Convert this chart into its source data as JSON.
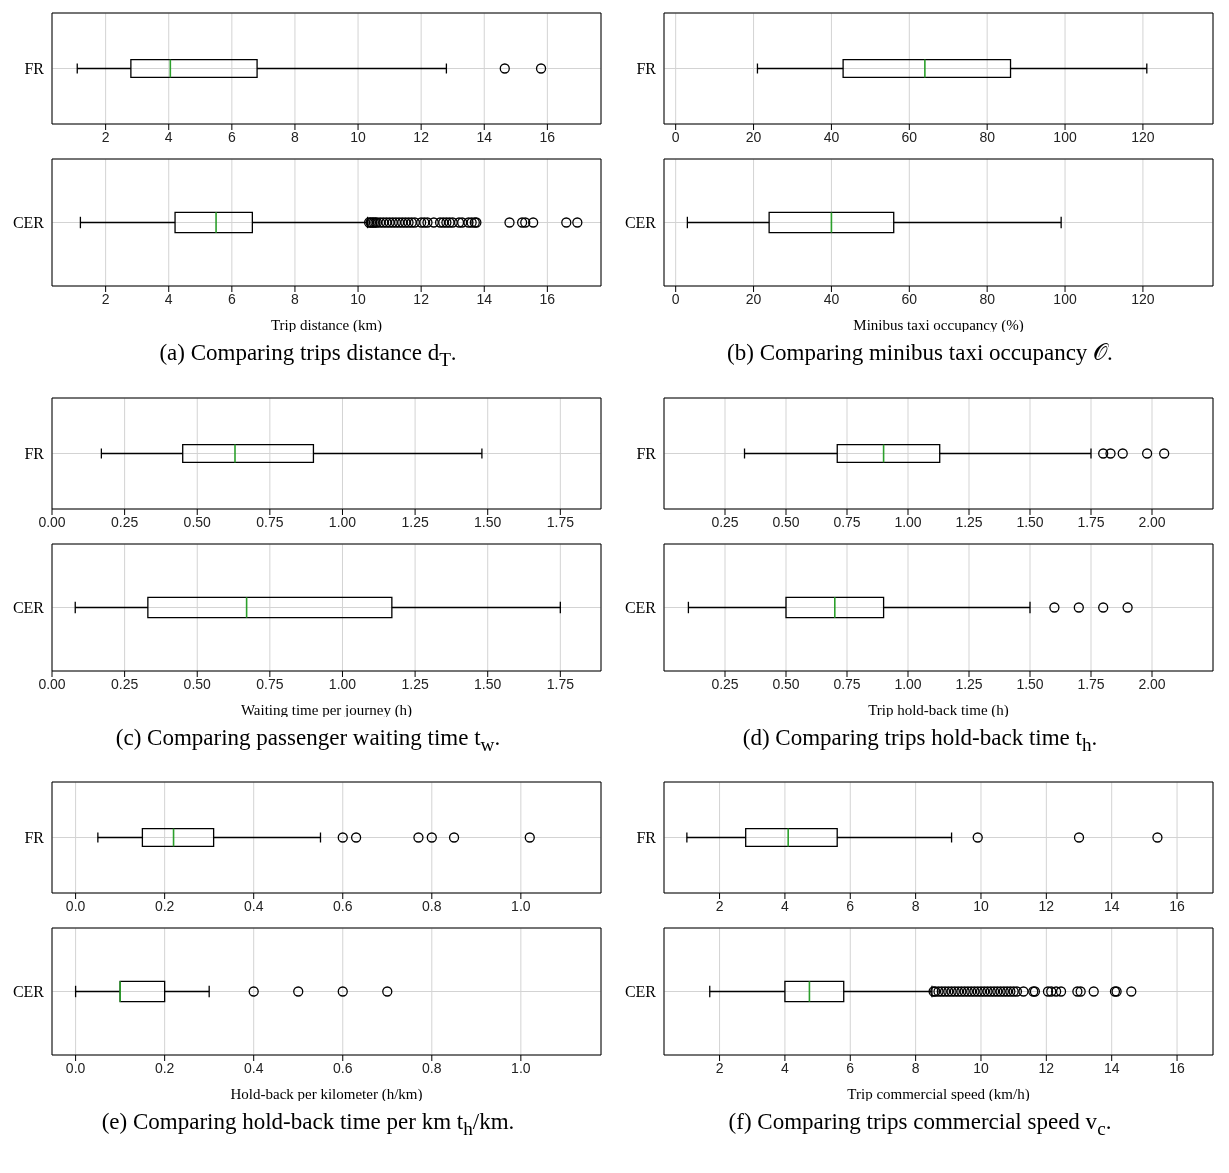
{
  "chart_data": [
    {
      "type": "box",
      "orientation": "horizontal",
      "categories": [
        "FR"
      ],
      "grid": true,
      "xlim": [
        0.3,
        17.7
      ],
      "xticks": [
        2,
        4,
        6,
        8,
        10,
        12,
        14,
        16
      ],
      "boxes": [
        {
          "low": 1.1,
          "q1": 2.8,
          "median": 4.05,
          "q3": 6.8,
          "high": 12.8,
          "outliers": [
            14.65,
            15.8
          ]
        }
      ]
    },
    {
      "type": "box",
      "orientation": "horizontal",
      "categories": [
        "CER"
      ],
      "grid": true,
      "xlim": [
        0.3,
        17.7
      ],
      "xticks": [
        2,
        4,
        6,
        8,
        10,
        12,
        14,
        16
      ],
      "xlabel": "Trip distance (km)",
      "annotations": [
        "(a) Comparing trips distance d$_{T}$."
      ],
      "boxes": [
        {
          "low": 1.2,
          "q1": 4.2,
          "median": 5.5,
          "q3": 6.65,
          "high": 10.3,
          "outliers": [
            10.35,
            10.4,
            10.45,
            10.5,
            10.55,
            10.6,
            10.7,
            10.8,
            10.9,
            11.0,
            11.1,
            11.2,
            11.3,
            11.4,
            11.5,
            11.6,
            11.7,
            11.8,
            12.0,
            12.1,
            12.2,
            12.4,
            12.6,
            12.7,
            12.8,
            12.9,
            13.0,
            13.2,
            13.3,
            13.5,
            13.6,
            13.7,
            13.75,
            14.8,
            15.2,
            15.3,
            15.55,
            16.6,
            16.95
          ]
        }
      ]
    },
    {
      "type": "box",
      "orientation": "horizontal",
      "categories": [
        "FR"
      ],
      "grid": true,
      "xlim": [
        -3,
        138
      ],
      "xticks": [
        0,
        20,
        40,
        60,
        80,
        100,
        120
      ],
      "boxes": [
        {
          "low": 21,
          "q1": 43,
          "median": 64,
          "q3": 86,
          "high": 121
        }
      ]
    },
    {
      "type": "box",
      "orientation": "horizontal",
      "categories": [
        "CER"
      ],
      "grid": true,
      "xlim": [
        -3,
        138
      ],
      "xticks": [
        0,
        20,
        40,
        60,
        80,
        100,
        120
      ],
      "xlabel": "Minibus taxi occupancy (%)",
      "annotations": [
        "(b) Comparing minibus taxi occupancy 𝒪."
      ],
      "boxes": [
        {
          "low": 3,
          "q1": 24,
          "median": 40,
          "q3": 56,
          "high": 99
        }
      ]
    },
    {
      "type": "box",
      "orientation": "horizontal",
      "categories": [
        "FR"
      ],
      "grid": true,
      "xlim": [
        0,
        1.89
      ],
      "xticks": [
        {
          "value": 0,
          "label": "0.00"
        },
        0.25,
        {
          "value": 0.5,
          "label": "0.50"
        },
        0.75,
        {
          "value": 1,
          "label": "1.00"
        },
        1.25,
        {
          "value": 1.5,
          "label": "1.50"
        },
        1.75
      ],
      "boxes": [
        {
          "low": 0.17,
          "q1": 0.45,
          "median": 0.63,
          "q3": 0.9,
          "high": 1.48
        }
      ]
    },
    {
      "type": "box",
      "orientation": "horizontal",
      "categories": [
        "CER"
      ],
      "grid": true,
      "xlim": [
        0,
        1.89
      ],
      "xticks": [
        {
          "value": 0,
          "label": "0.00"
        },
        0.25,
        {
          "value": 0.5,
          "label": "0.50"
        },
        0.75,
        {
          "value": 1,
          "label": "1.00"
        },
        1.25,
        {
          "value": 1.5,
          "label": "1.50"
        },
        1.75
      ],
      "xlabel": "Waiting time per journey (h)",
      "annotations": [
        "(c) Comparing passenger waiting time t$_{w}$."
      ],
      "boxes": [
        {
          "low": 0.08,
          "q1": 0.33,
          "median": 0.67,
          "q3": 1.17,
          "high": 1.75
        }
      ]
    },
    {
      "type": "box",
      "orientation": "horizontal",
      "categories": [
        "FR"
      ],
      "grid": true,
      "xlim": [
        0,
        2.25
      ],
      "xticks": [
        0.25,
        {
          "value": 0.5,
          "label": "0.50"
        },
        0.75,
        {
          "value": 1,
          "label": "1.00"
        },
        1.25,
        {
          "value": 1.5,
          "label": "1.50"
        },
        1.75,
        {
          "value": 2,
          "label": "2.00"
        }
      ],
      "boxes": [
        {
          "low": 0.33,
          "q1": 0.71,
          "median": 0.9,
          "q3": 1.13,
          "high": 1.75,
          "outliers": [
            1.8,
            1.83,
            1.88,
            1.98,
            2.05
          ]
        }
      ]
    },
    {
      "type": "box",
      "orientation": "horizontal",
      "categories": [
        "CER"
      ],
      "grid": true,
      "xlim": [
        0,
        2.25
      ],
      "xticks": [
        0.25,
        {
          "value": 0.5,
          "label": "0.50"
        },
        0.75,
        {
          "value": 1,
          "label": "1.00"
        },
        1.25,
        {
          "value": 1.5,
          "label": "1.50"
        },
        1.75,
        {
          "value": 2,
          "label": "2.00"
        }
      ],
      "xlabel": "Trip hold-back time (h)",
      "annotations": [
        "(d) Comparing trips hold-back time t$_{h}$."
      ],
      "boxes": [
        {
          "low": 0.1,
          "q1": 0.5,
          "median": 0.7,
          "q3": 0.9,
          "high": 1.5,
          "outliers": [
            1.6,
            1.7,
            1.8,
            1.9
          ]
        }
      ]
    },
    {
      "type": "box",
      "orientation": "horizontal",
      "categories": [
        "FR"
      ],
      "grid": true,
      "xlim": [
        -0.053,
        1.18
      ],
      "xticks": [
        {
          "value": 0,
          "label": "0.0"
        },
        0.2,
        0.4,
        0.6,
        0.8,
        {
          "value": 1,
          "label": "1.0"
        }
      ],
      "boxes": [
        {
          "low": 0.05,
          "q1": 0.15,
          "median": 0.22,
          "q3": 0.31,
          "high": 0.55,
          "outliers": [
            0.6,
            0.63,
            0.77,
            0.8,
            0.85,
            1.02
          ]
        }
      ]
    },
    {
      "type": "box",
      "orientation": "horizontal",
      "categories": [
        "CER"
      ],
      "grid": true,
      "xlim": [
        -0.053,
        1.18
      ],
      "xticks": [
        {
          "value": 0,
          "label": "0.0"
        },
        0.2,
        0.4,
        0.6,
        0.8,
        {
          "value": 1,
          "label": "1.0"
        }
      ],
      "xlabel": "Hold-back per kilometer (h/km)",
      "annotations": [
        "(e) Comparing hold-back time per km t$_{h}$/km."
      ],
      "boxes": [
        {
          "low": 0,
          "q1": 0.1,
          "median": 0.1,
          "q3": 0.2,
          "high": 0.3,
          "outliers": [
            0.4,
            0.5,
            0.6,
            0.7
          ]
        }
      ]
    },
    {
      "type": "box",
      "orientation": "horizontal",
      "categories": [
        "FR"
      ],
      "grid": true,
      "xlim": [
        0.3,
        17.1
      ],
      "xticks": [
        2,
        4,
        6,
        8,
        10,
        12,
        14,
        16
      ],
      "boxes": [
        {
          "low": 1.0,
          "q1": 2.8,
          "median": 4.1,
          "q3": 5.6,
          "high": 9.1,
          "outliers": [
            9.9,
            13.0,
            15.4
          ]
        }
      ]
    },
    {
      "type": "box",
      "orientation": "horizontal",
      "categories": [
        "CER"
      ],
      "grid": true,
      "xlim": [
        0.3,
        17.1
      ],
      "xticks": [
        2,
        4,
        6,
        8,
        10,
        12,
        14,
        16
      ],
      "xlabel": "Trip commercial speed (km/h)",
      "annotations": [
        "(f) Comparing trips commercial speed v$_{c}$."
      ],
      "boxes": [
        {
          "low": 1.7,
          "q1": 4.0,
          "median": 4.75,
          "q3": 5.8,
          "high": 8.5,
          "outliers": [
            8.55,
            8.6,
            8.7,
            8.8,
            8.9,
            9.0,
            9.1,
            9.2,
            9.3,
            9.4,
            9.5,
            9.6,
            9.7,
            9.8,
            9.9,
            10.0,
            10.1,
            10.2,
            10.3,
            10.4,
            10.5,
            10.6,
            10.7,
            10.8,
            10.9,
            11.0,
            11.1,
            11.3,
            11.6,
            11.65,
            12.05,
            12.15,
            12.3,
            12.45,
            12.95,
            13.05,
            13.45,
            14.1,
            14.15,
            14.6
          ]
        }
      ]
    }
  ]
}
